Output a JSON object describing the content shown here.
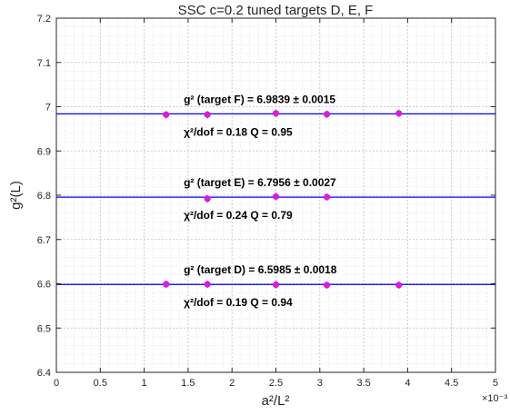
{
  "chart_data": {
    "type": "scatter",
    "title": "SSC   c=0.2   tuned targets   D, E, F",
    "xlabel": "a²/L²",
    "ylabel": "g²(L)",
    "x_exponent_label": "×10⁻³",
    "xlim": [
      0,
      5
    ],
    "ylim": [
      6.4,
      7.2
    ],
    "xticks": [
      "0",
      "0.5",
      "1",
      "1.5",
      "2",
      "2.5",
      "3",
      "3.5",
      "4",
      "4.5",
      "5"
    ],
    "yticks": [
      "6.4",
      "6.5",
      "6.6",
      "6.7",
      "6.8",
      "6.9",
      "7",
      "7.1",
      "7.2"
    ],
    "grid": true,
    "minor_grid": true,
    "colors": {
      "points": "#e815e8",
      "fit_line": "#0000ff"
    },
    "series": [
      {
        "name": "target F",
        "x": [
          1.25,
          1.72,
          2.5,
          3.08,
          3.9
        ],
        "y": [
          6.982,
          6.982,
          6.985,
          6.983,
          6.985
        ],
        "fit": 6.9839,
        "fit_label": "g² (target F) =  6.9839 ± 0.0015",
        "stats_label": "χ²/dof = 0.18    Q = 0.95"
      },
      {
        "name": "target E",
        "x": [
          1.72,
          2.5,
          3.08
        ],
        "y": [
          6.792,
          6.797,
          6.796
        ],
        "fit": 6.7956,
        "fit_label": "g² (target E) =  6.7956 ± 0.0027",
        "stats_label": "χ²/dof = 0.24    Q = 0.79"
      },
      {
        "name": "target D",
        "x": [
          1.25,
          1.72,
          2.5,
          3.08,
          3.9
        ],
        "y": [
          6.599,
          6.599,
          6.598,
          6.597,
          6.597
        ],
        "fit": 6.5985,
        "fit_label": "g² (target D) =  6.5985 ± 0.0018",
        "stats_label": "χ²/dof = 0.19    Q = 0.94"
      }
    ]
  }
}
